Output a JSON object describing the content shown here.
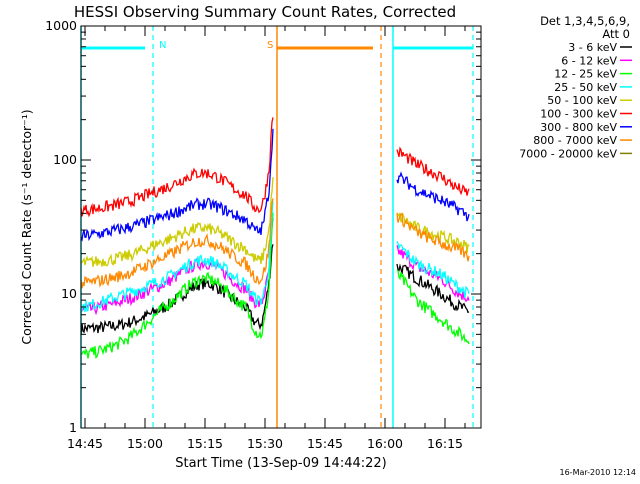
{
  "chart_data": {
    "type": "line",
    "title": "HESSI Observing Summary Count Rates, Corrected",
    "xlabel": "Start Time (13-Sep-09 14:44:22)",
    "ylabel": "Corrected Count Rate (s⁻¹ detector⁻¹)",
    "y_scale": "log",
    "ylim": [
      1,
      1000
    ],
    "xlim": [
      "14:44",
      "16:24"
    ],
    "x_ticks": [
      "14:45",
      "15:00",
      "15:15",
      "15:30",
      "15:45",
      "16:00",
      "16:15"
    ],
    "y_ticks": [
      {
        "value": 1,
        "label": "1"
      },
      {
        "value": 10,
        "label": "10"
      },
      {
        "value": 100,
        "label": "100"
      },
      {
        "value": 1000,
        "label": "1000"
      }
    ],
    "legend_header": [
      "Det 1,3,4,5,6,9,",
      "Att 0"
    ],
    "series": [
      {
        "name": "3 - 6 keV",
        "color": "#000000",
        "segments": [
          {
            "t": [
              "14:44",
              "14:55",
              "15:05",
              "15:15",
              "15:25",
              "15:29",
              "15:31",
              "15:32"
            ],
            "v": [
              5.5,
              6,
              8,
              12,
              8,
              6,
              12,
              25
            ]
          },
          {
            "t": [
              "16:03",
              "16:08",
              "16:14",
              "16:19",
              "16:21"
            ],
            "v": [
              16,
              13,
              10,
              8,
              7.5
            ]
          }
        ]
      },
      {
        "name": "6 - 12 keV",
        "color": "#ff00ff",
        "segments": [
          {
            "t": [
              "14:44",
              "14:55",
              "15:05",
              "15:15",
              "15:25",
              "15:29",
              "15:31",
              "15:32"
            ],
            "v": [
              7.5,
              9,
              12,
              17,
              11,
              8.5,
              15,
              35
            ]
          },
          {
            "t": [
              "16:03",
              "16:08",
              "16:14",
              "16:19",
              "16:21"
            ],
            "v": [
              21,
              16,
              13,
              10,
              9.5
            ]
          }
        ]
      },
      {
        "name": "12 - 25 keV",
        "color": "#00ff00",
        "segments": [
          {
            "t": [
              "14:44",
              "14:55",
              "15:05",
              "15:15",
              "15:25",
              "15:29",
              "15:31",
              "15:32"
            ],
            "v": [
              3.5,
              4.5,
              8,
              13,
              8,
              5,
              11,
              40
            ]
          },
          {
            "t": [
              "16:03",
              "16:08",
              "16:14",
              "16:19",
              "16:21"
            ],
            "v": [
              14,
              9,
              6.5,
              5,
              4.5
            ]
          }
        ]
      },
      {
        "name": "25 - 50 keV",
        "color": "#00ffff",
        "segments": [
          {
            "t": [
              "14:44",
              "14:55",
              "15:05",
              "15:15",
              "15:25",
              "15:29",
              "15:31",
              "15:32"
            ],
            "v": [
              8,
              10,
              13,
              18,
              12,
              9,
              16,
              45
            ]
          },
          {
            "t": [
              "16:03",
              "16:08",
              "16:14",
              "16:19",
              "16:21"
            ],
            "v": [
              23,
              17,
              14,
              11,
              10
            ]
          }
        ]
      },
      {
        "name": "50 - 100 keV",
        "color": "#cccc00",
        "segments": [
          {
            "t": [
              "14:44",
              "14:55",
              "15:05",
              "15:15",
              "15:25",
              "15:29",
              "15:31",
              "15:32"
            ],
            "v": [
              17,
              19,
              25,
              31,
              22,
              18,
              30,
              70
            ]
          },
          {
            "t": [
              "16:03",
              "16:08",
              "16:14",
              "16:19",
              "16:21"
            ],
            "v": [
              38,
              31,
              27,
              24,
              22
            ]
          }
        ]
      },
      {
        "name": "100 - 300 keV",
        "color": "#ff0000",
        "segments": [
          {
            "t": [
              "14:44",
              "14:55",
              "15:05",
              "15:15",
              "15:25",
              "15:29",
              "15:31",
              "15:32"
            ],
            "v": [
              42,
              48,
              62,
              80,
              55,
              44,
              85,
              220
            ]
          },
          {
            "t": [
              "16:03",
              "16:08",
              "16:14",
              "16:19",
              "16:21"
            ],
            "v": [
              115,
              92,
              75,
              60,
              57
            ]
          }
        ]
      },
      {
        "name": "300 - 800 keV",
        "color": "#0000ff",
        "segments": [
          {
            "t": [
              "14:44",
              "14:55",
              "15:05",
              "15:15",
              "15:25",
              "15:29",
              "15:31",
              "15:32"
            ],
            "v": [
              27,
              31,
              38,
              47,
              36,
              30,
              60,
              160
            ]
          },
          {
            "t": [
              "16:03",
              "16:08",
              "16:14",
              "16:19",
              "16:21"
            ],
            "v": [
              75,
              60,
              50,
              42,
              38
            ]
          }
        ]
      },
      {
        "name": "800 - 7000 keV",
        "color": "#ff8800",
        "segments": [
          {
            "t": [
              "14:44",
              "14:55",
              "15:05",
              "15:15",
              "15:25",
              "15:29",
              "15:31",
              "15:32"
            ],
            "v": [
              12,
              14,
              19,
              25,
              17,
              13,
              22,
              55
            ]
          },
          {
            "t": [
              "16:03",
              "16:08",
              "16:14",
              "16:19",
              "16:21"
            ],
            "v": [
              38,
              29,
              24,
              21,
              19
            ]
          }
        ]
      },
      {
        "name": "7000 - 20000 keV",
        "color": "#808000",
        "segments": []
      }
    ],
    "intervals": [
      {
        "label": "N",
        "color": "#00ffff",
        "start": "14:44",
        "end": "15:02"
      },
      {
        "label": "S",
        "color": "#ff8800",
        "start": "15:33",
        "end": "15:59"
      },
      {
        "label": "",
        "color": "#00ffff",
        "start": "16:02",
        "end": "16:22"
      }
    ]
  },
  "footer": {
    "timestamp": "16-Mar-2010 12:14"
  }
}
